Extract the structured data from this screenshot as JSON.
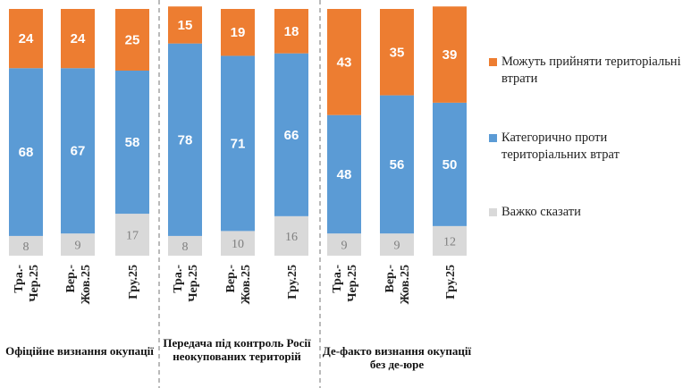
{
  "chart_data": {
    "type": "bar",
    "stacked": true,
    "stack_total": 100,
    "groups": [
      {
        "label": "Офіційне визнання окупації",
        "categories": [
          "Тра.-Чер.25",
          "Вер.-Жов.25",
          "Гру.25"
        ]
      },
      {
        "label": "Передача під контроль Росії неокупованих територій",
        "categories": [
          "Тра.-Чер.25",
          "Вер.-Жов.25",
          "Гру.25"
        ]
      },
      {
        "label": "Де-факто визнання окупації без де-юре",
        "categories": [
          "Тра.-Чер.25",
          "Вер.-Жов.25",
          "Гру.25"
        ]
      }
    ],
    "series": [
      {
        "name": "Важко сказати",
        "color": "#d9d9d9",
        "label_color": "#7f7f7f",
        "values": [
          8,
          9,
          17,
          8,
          10,
          16,
          9,
          9,
          12
        ]
      },
      {
        "name": "Категорично проти територіальних втрат",
        "color": "#5b9bd5",
        "label_color": "#ffffff",
        "values": [
          68,
          67,
          58,
          78,
          71,
          66,
          48,
          56,
          50
        ]
      },
      {
        "name": "Можуть прийняти територіальні втрати",
        "color": "#ed7d31",
        "label_color": "#ffffff",
        "values": [
          24,
          24,
          25,
          15,
          19,
          18,
          43,
          35,
          39
        ]
      }
    ],
    "legend_position": "right",
    "legend_order": [
      "Можуть прийняти територіальні втрати",
      "Категорично проти територіальних втрат",
      "Важко сказати"
    ],
    "separator": "dashed"
  }
}
